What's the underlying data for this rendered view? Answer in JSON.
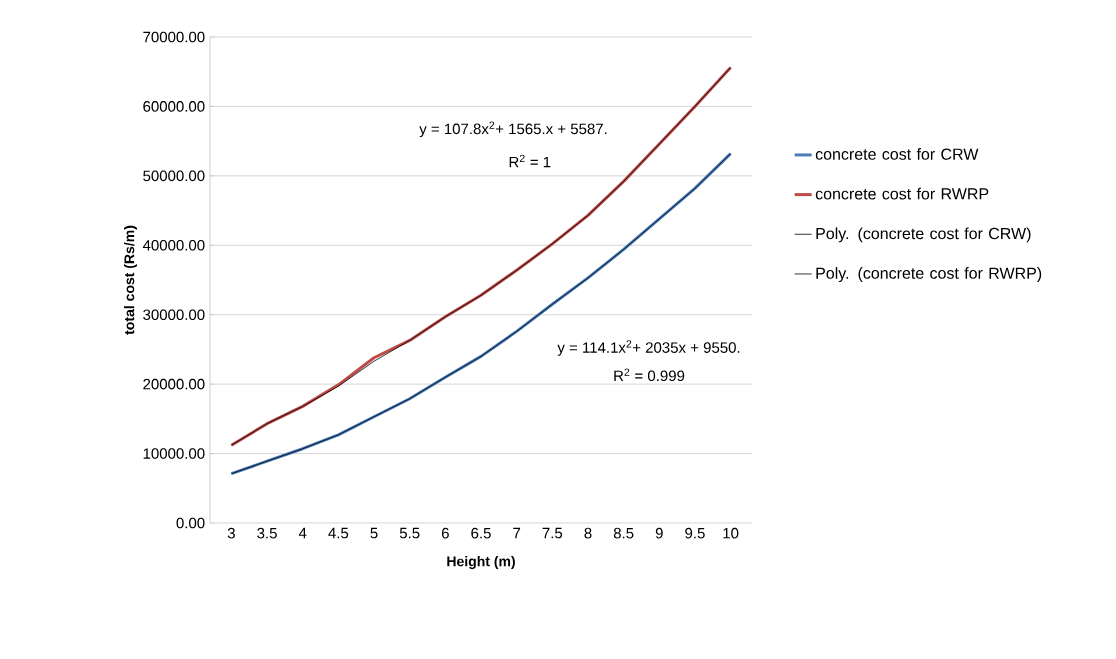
{
  "chart_data": {
    "type": "line",
    "xlabel": "Height (m)",
    "ylabel": "total cost (Rs/m)",
    "categories": [
      "3",
      "3.5",
      "4",
      "4.5",
      "5",
      "5.5",
      "6",
      "6.5",
      "7",
      "7.5",
      "8",
      "8.5",
      "9",
      "9.5",
      "10"
    ],
    "series": [
      {
        "name": "concrete cost for CRW",
        "color": "#4a7ebb",
        "values": [
          7100,
          8900,
          10700,
          12700,
          15300,
          17900,
          21000,
          24000,
          27600,
          31500,
          35300,
          39400,
          43800,
          48200,
          53200
        ]
      },
      {
        "name": "concrete cost for RWRP",
        "color": "#be4b48",
        "values": [
          11200,
          14300,
          16800,
          19900,
          23800,
          26300,
          29700,
          32800,
          36400,
          40200,
          44300,
          49200,
          54600,
          60000,
          65600
        ]
      },
      {
        "name": "Poly. (concrete cost for CRW)",
        "color": "#000000",
        "values": [
          7100,
          8900,
          10700,
          12700,
          15300,
          17900,
          21000,
          24000,
          27600,
          31500,
          35300,
          39400,
          43800,
          48200,
          53200
        ]
      },
      {
        "name": "Poly. (concrete cost for RWRP)",
        "color": "#000000",
        "values": [
          11200,
          14300,
          16800,
          19700,
          23300,
          26300,
          29700,
          32800,
          36400,
          40200,
          44300,
          49200,
          54600,
          60000,
          65600
        ]
      }
    ],
    "ylim": [
      0,
      70000
    ],
    "yticks": [
      {
        "value": 0,
        "label": "0.00"
      },
      {
        "value": 10000,
        "label": "10000.00"
      },
      {
        "value": 20000,
        "label": "20000.00"
      },
      {
        "value": 30000,
        "label": "30000.00"
      },
      {
        "value": 40000,
        "label": "40000.00"
      },
      {
        "value": 50000,
        "label": "50000.00"
      },
      {
        "value": 60000,
        "label": "60000.00"
      },
      {
        "value": 70000,
        "label": "70000.00"
      }
    ],
    "grid": "y",
    "legend": "right",
    "annotations": [
      "y = 107.8x$^{2}$+ 1565.x + 5587.",
      "R$^{2}$ = 1",
      "y = 114.1x$^{2}$+ 2035x + 9550.",
      "R$^{2}$ = 0.999"
    ]
  }
}
